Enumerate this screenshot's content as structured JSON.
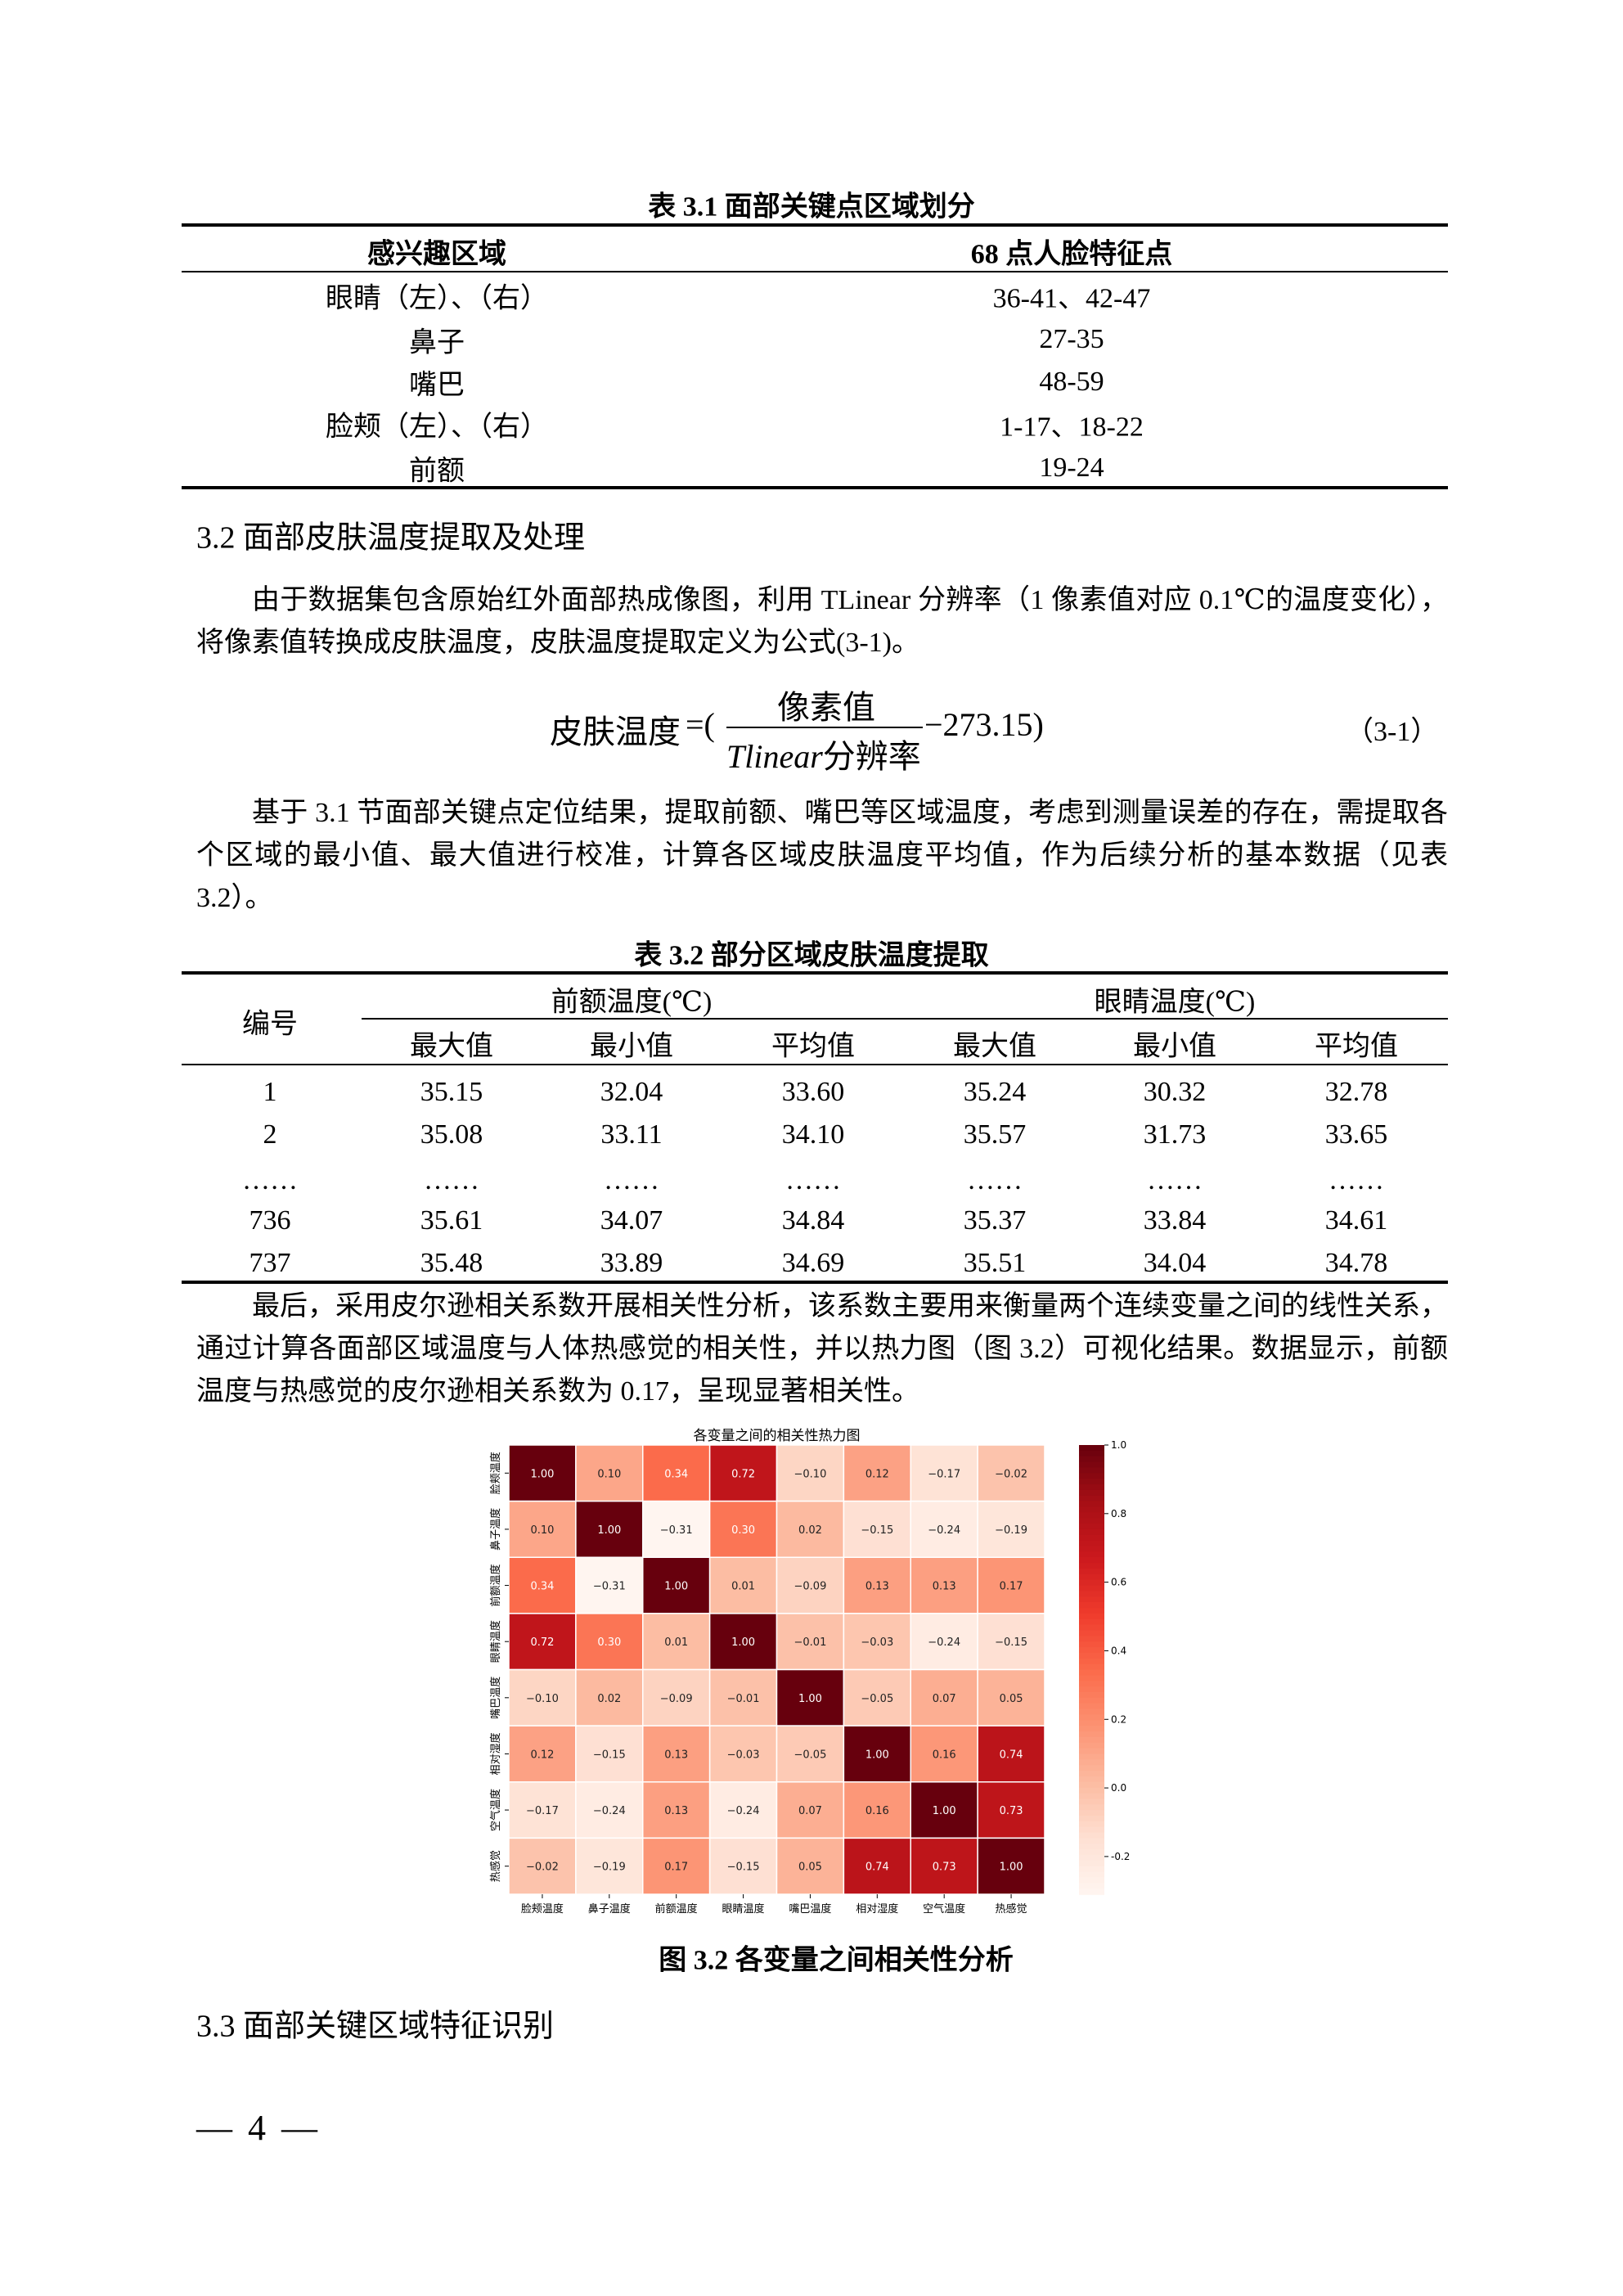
{
  "table31": {
    "caption": "表 3.1  面部关键点区域划分",
    "headers": [
      "感兴趣区域",
      "68 点人脸特征点"
    ],
    "rows": [
      [
        "眼睛（左）、（右）",
        "36-41、42-47"
      ],
      [
        "鼻子",
        "27-35"
      ],
      [
        "嘴巴",
        "48-59"
      ],
      [
        "脸颊（左）、（右）",
        "1-17、18-22"
      ],
      [
        "前额",
        "19-24"
      ]
    ]
  },
  "section32": {
    "heading": "3.2 面部皮肤温度提取及处理",
    "para1": "由于数据集包含原始红外面部热成像图，利用 TLinear 分辨率（1 像素值对应 0.1℃的温度变化），将像素值转换成皮肤温度，皮肤温度提取定义为公式(3-1)。",
    "formula": {
      "lhs": "皮肤温度",
      "eq": "=(",
      "numerator": "像素值",
      "denominator_italic": "Tlinear",
      "denominator_rest": "分辨率",
      "tail": "−273.15)",
      "number": "（3-1）"
    },
    "para2": "基于 3.1 节面部关键点定位结果，提取前额、嘴巴等区域温度，考虑到测量误差的存在，需提取各个区域的最小值、最大值进行校准，计算各区域皮肤温度平均值，作为后续分析的基本数据（见表 3.2）。"
  },
  "table32": {
    "caption": "表 3.2  部分区域皮肤温度提取",
    "id_header": "编号",
    "group_headers": [
      "前额温度(℃)",
      "眼睛温度(℃)"
    ],
    "sub_headers": [
      "最大值",
      "最小值",
      "平均值",
      "最大值",
      "最小值",
      "平均值"
    ],
    "rows": [
      [
        "1",
        "35.15",
        "32.04",
        "33.60",
        "35.24",
        "30.32",
        "32.78"
      ],
      [
        "2",
        "35.08",
        "33.11",
        "34.10",
        "35.57",
        "31.73",
        "33.65"
      ],
      [
        "……",
        "……",
        "……",
        "……",
        "……",
        "……",
        "……"
      ],
      [
        "736",
        "35.61",
        "34.07",
        "34.84",
        "35.37",
        "33.84",
        "34.61"
      ],
      [
        "737",
        "35.48",
        "33.89",
        "34.69",
        "35.51",
        "34.04",
        "34.78"
      ]
    ]
  },
  "para3": "最后，采用皮尔逊相关系数开展相关性分析，该系数主要用来衡量两个连续变量之间的线性关系，通过计算各面部区域温度与人体热感觉的相关性，并以热力图（图 3.2）可视化结果。数据显示，前额温度与热感觉的皮尔逊相关系数为 0.17，呈现显著相关性。",
  "chart_data": {
    "type": "heatmap",
    "title": "各变量之间的相关性热力图",
    "x_labels": [
      "脸颊温度",
      "鼻子温度",
      "前额温度",
      "眼睛温度",
      "嘴巴温度",
      "相对湿度",
      "空气温度",
      "热感觉"
    ],
    "y_labels": [
      "脸颊温度",
      "鼻子温度",
      "前额温度",
      "眼睛温度",
      "嘴巴温度",
      "相对湿度",
      "空气温度",
      "热感觉"
    ],
    "matrix": [
      [
        1.0,
        0.1,
        0.34,
        0.72,
        -0.1,
        0.12,
        -0.17,
        -0.02
      ],
      [
        0.1,
        1.0,
        -0.31,
        0.3,
        0.02,
        -0.15,
        -0.24,
        -0.19
      ],
      [
        0.34,
        -0.31,
        1.0,
        0.01,
        -0.09,
        0.13,
        0.13,
        0.17
      ],
      [
        0.72,
        0.3,
        0.01,
        1.0,
        -0.01,
        -0.03,
        -0.24,
        -0.15
      ],
      [
        -0.1,
        0.02,
        -0.09,
        -0.01,
        1.0,
        -0.05,
        0.07,
        0.05
      ],
      [
        0.12,
        -0.15,
        0.13,
        -0.03,
        -0.05,
        1.0,
        0.16,
        0.74
      ],
      [
        -0.17,
        -0.24,
        0.13,
        -0.24,
        0.07,
        0.16,
        1.0,
        0.73
      ],
      [
        -0.02,
        -0.19,
        0.17,
        -0.15,
        0.05,
        0.74,
        0.73,
        1.0
      ]
    ],
    "annotation_format": "0.00",
    "colormap": "Reds",
    "colormap_stops": [
      "#fff5f0",
      "#fee0d2",
      "#fcbba1",
      "#fc9272",
      "#fb6a4a",
      "#ef3b2c",
      "#cb181d",
      "#a50f15",
      "#67000d"
    ],
    "color_range": [
      -0.31,
      1.0
    ],
    "colorbar_ticks": [
      1.0,
      0.8,
      0.6,
      0.4,
      0.2,
      0.0,
      -0.2
    ],
    "colorbar_tick_labels": [
      "1.0",
      "0.8",
      "0.6",
      "0.4",
      "0.2",
      "0.0",
      "-0.2"
    ],
    "colorbar_position": "right"
  },
  "figure_caption": "图 3.2  各变量之间相关性分析",
  "section33": {
    "heading": "3.3 面部关键区域特征识别"
  },
  "page_number": "— 4 —"
}
